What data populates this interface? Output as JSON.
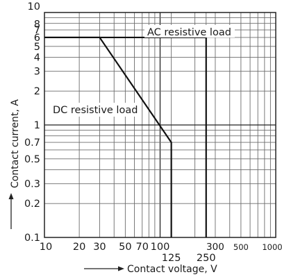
{
  "chart_data": {
    "type": "line",
    "xscale": "log",
    "yscale": "log",
    "xlim": [
      10,
      1000
    ],
    "ylim": [
      0.1,
      10
    ],
    "grid": true,
    "xlabel": "Contact voltage, V",
    "ylabel": "Contact current, A",
    "x_tick_labels": [
      {
        "value": 10,
        "label": "10"
      },
      {
        "value": 20,
        "label": "20"
      },
      {
        "value": 30,
        "label": "30"
      },
      {
        "value": 50,
        "label": "50"
      },
      {
        "value": 70,
        "label": "70"
      },
      {
        "value": 100,
        "label": "100"
      },
      {
        "value": 125,
        "label": "125"
      },
      {
        "value": 250,
        "label": "250"
      },
      {
        "value": 300,
        "label": "300"
      },
      {
        "value": 500,
        "label": "500"
      },
      {
        "value": 1000,
        "label": "1000"
      }
    ],
    "y_tick_labels": [
      {
        "value": 0.1,
        "label": "0.1"
      },
      {
        "value": 0.2,
        "label": "0.2"
      },
      {
        "value": 0.3,
        "label": "0.3"
      },
      {
        "value": 0.5,
        "label": "0.5"
      },
      {
        "value": 0.7,
        "label": "0.7"
      },
      {
        "value": 1,
        "label": "1"
      },
      {
        "value": 2,
        "label": "2"
      },
      {
        "value": 3,
        "label": "3"
      },
      {
        "value": 4,
        "label": "4"
      },
      {
        "value": 5,
        "label": "5"
      },
      {
        "value": 6,
        "label": "6"
      },
      {
        "value": 7,
        "label": "7"
      },
      {
        "value": 8,
        "label": "8"
      },
      {
        "value": 10,
        "label": "10"
      }
    ],
    "series": [
      {
        "name": "AC resistive load",
        "points": [
          [
            10,
            6
          ],
          [
            250,
            6
          ],
          [
            250,
            0.1
          ]
        ]
      },
      {
        "name": "DC resistive load",
        "points": [
          [
            10,
            6
          ],
          [
            30,
            6
          ],
          [
            125,
            0.7
          ],
          [
            125,
            0.1
          ]
        ]
      }
    ]
  }
}
